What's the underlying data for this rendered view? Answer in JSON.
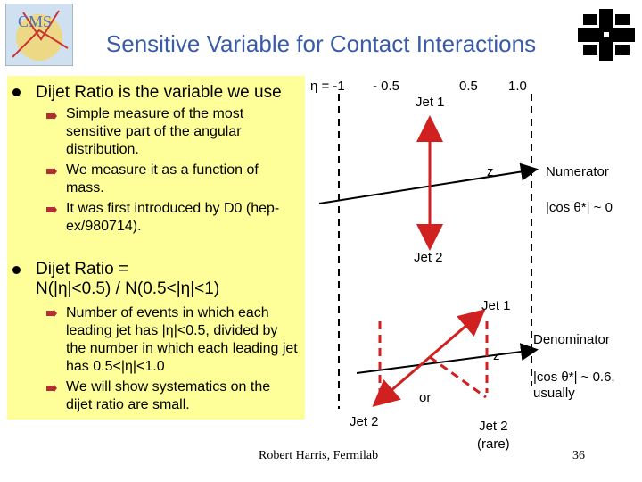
{
  "header": {
    "title": "Sensitive Variable for Contact Interactions"
  },
  "bullets": [
    {
      "text": "Dijet Ratio is the variable we use",
      "sub": [
        "Simple measure of the most sensitive part of the angular distribution.",
        "We measure it as a function of mass.",
        "It was first introduced by D0 (hep-ex/980714)."
      ]
    },
    {
      "text": "Dijet Ratio =\nN(|η|<0.5) / N(0.5<|η|<1)",
      "sub": [
        "Number of events in which each leading jet has |η|<0.5, divided by the number in which each leading jet has 0.5<|η|<1.0",
        "We will show systematics on the dijet ratio are small."
      ]
    }
  ],
  "diagram": {
    "eta_labels": [
      "η = -1",
      "- 0.5",
      "0.5",
      "1.0"
    ],
    "numerator": {
      "jet1": "Jet 1",
      "jet2": "Jet 2",
      "axis": "z",
      "label": "Numerator",
      "cos": "|cos θ*| ~ 0"
    },
    "denominator": {
      "jet1": "Jet 1",
      "jet2": "Jet 2",
      "jet2_rare": "Jet 2\n(rare)",
      "or": "or",
      "axis": "z",
      "label": "Denominator",
      "cos": "|cos θ*| ~ 0.6,\nusually"
    }
  },
  "footer": {
    "author": "Robert Harris, Fermilab",
    "page": "36"
  }
}
